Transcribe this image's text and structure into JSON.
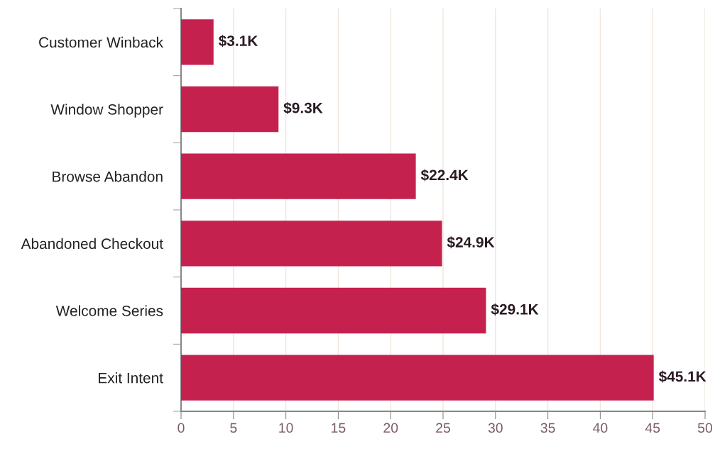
{
  "chart_data": {
    "type": "bar",
    "orientation": "horizontal",
    "categories": [
      "Customer Winback",
      "Window Shopper",
      "Browse Abandon",
      "Abandoned Checkout",
      "Welcome Series",
      "Exit Intent"
    ],
    "values": [
      3.1,
      9.3,
      22.4,
      24.9,
      29.1,
      45.1
    ],
    "value_labels": [
      "$3.1K",
      "$9.3K",
      "$22.4K",
      "$24.9K",
      "$29.1K",
      "$45.1K"
    ],
    "color": "#c5214f",
    "xlim": [
      0,
      50
    ],
    "xticks": [
      0,
      5,
      10,
      15,
      20,
      25,
      30,
      35,
      40,
      45,
      50
    ],
    "grid": "x"
  }
}
